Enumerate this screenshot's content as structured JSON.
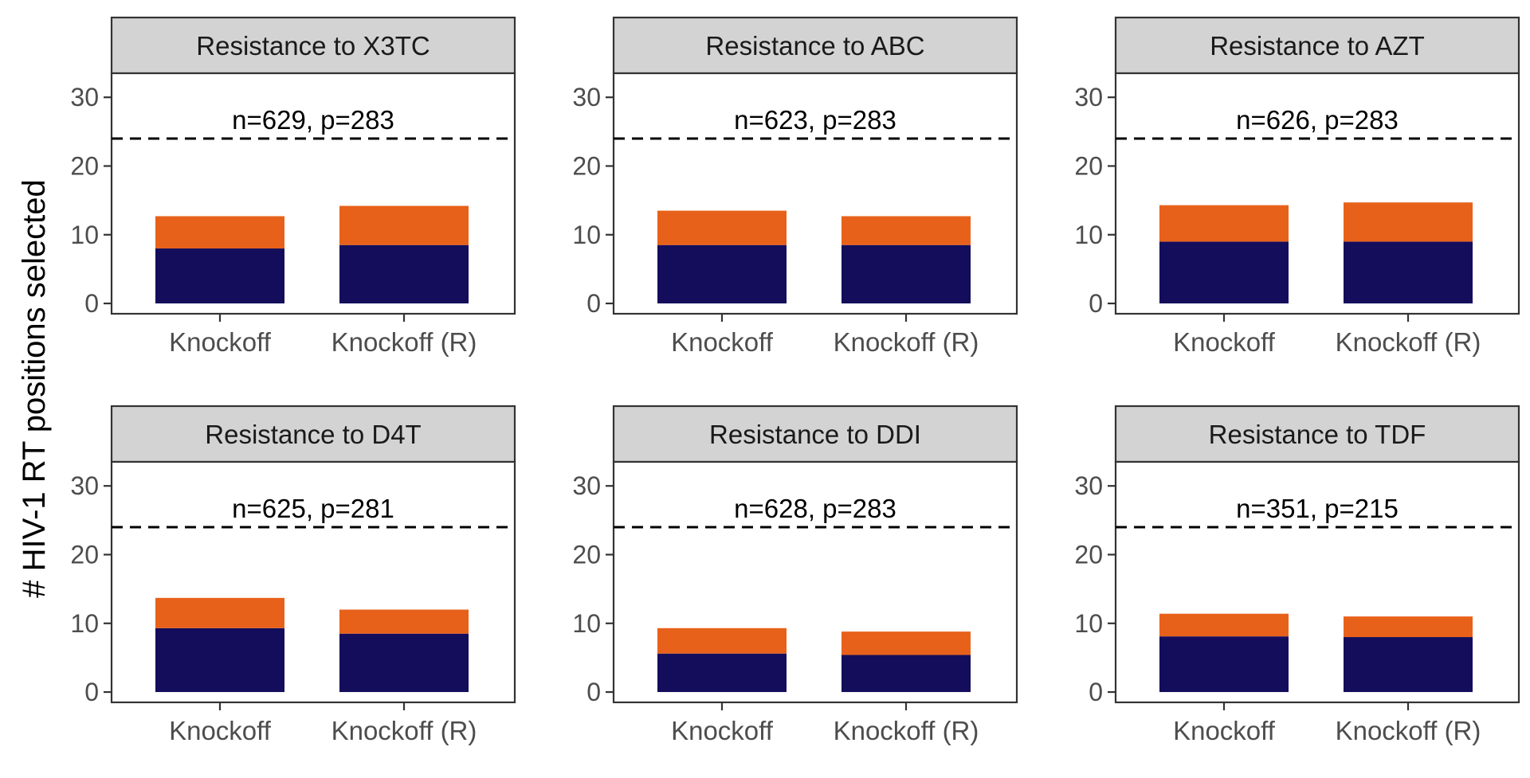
{
  "chart_data": {
    "type": "bar",
    "stacked": true,
    "layout": "facet 2 rows x 3 columns",
    "ylabel": "# HIV-1 RT positions selected",
    "yticks": [
      0,
      10,
      20,
      30
    ],
    "ylim": [
      -1.5,
      33.5
    ],
    "categories": [
      "Knockoff",
      "Knockoff (R)"
    ],
    "reference_line": {
      "y": 24,
      "style": "dashed",
      "color": "#000000"
    },
    "colors": {
      "bottom": "#140d5c",
      "top": "#e8611a",
      "strip": "#d3d3d3"
    },
    "legend": "none",
    "grid": false,
    "panels": [
      {
        "title": "Resistance to X3TC",
        "annotation": "n=629, p=283",
        "series": [
          {
            "values": [
              8,
              8.5
            ]
          },
          {
            "values": [
              4.7,
              5.7
            ]
          }
        ]
      },
      {
        "title": "Resistance to ABC",
        "annotation": "n=623, p=283",
        "series": [
          {
            "values": [
              8.5,
              8.5
            ]
          },
          {
            "values": [
              5,
              4.2
            ]
          }
        ]
      },
      {
        "title": "Resistance to AZT",
        "annotation": "n=626, p=283",
        "series": [
          {
            "values": [
              9,
              9
            ]
          },
          {
            "values": [
              5.3,
              5.7
            ]
          }
        ]
      },
      {
        "title": "Resistance to D4T",
        "annotation": "n=625, p=281",
        "series": [
          {
            "values": [
              9.3,
              8.5
            ]
          },
          {
            "values": [
              4.4,
              3.5
            ]
          }
        ]
      },
      {
        "title": "Resistance to DDI",
        "annotation": "n=628, p=283",
        "series": [
          {
            "values": [
              5.6,
              5.4
            ]
          },
          {
            "values": [
              3.7,
              3.4
            ]
          }
        ]
      },
      {
        "title": "Resistance to TDF",
        "annotation": "n=351, p=215",
        "series": [
          {
            "values": [
              8.1,
              8
            ]
          },
          {
            "values": [
              3.3,
              3
            ]
          }
        ]
      }
    ]
  }
}
